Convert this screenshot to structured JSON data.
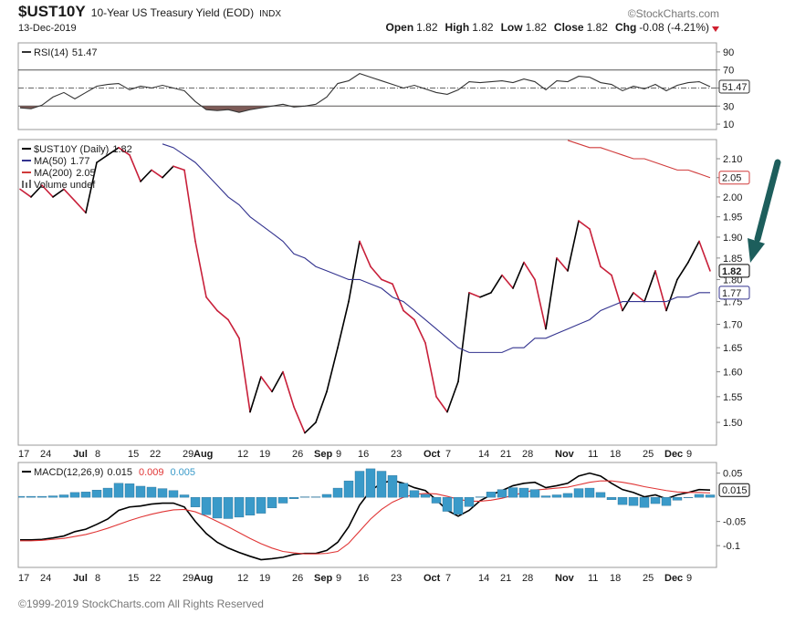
{
  "header": {
    "symbol": "$UST10Y",
    "name": "10-Year US Treasury Yield (EOD)",
    "exchange": "INDX",
    "source": "©StockCharts.com",
    "date": "13-Dec-2019",
    "quote": [
      {
        "label": "Open",
        "value": "1.82"
      },
      {
        "label": "High",
        "value": "1.82"
      },
      {
        "label": "Low",
        "value": "1.82"
      },
      {
        "label": "Close",
        "value": "1.82"
      },
      {
        "label": "Chg",
        "value": "-0.08 (-4.21%)"
      }
    ]
  },
  "chart_data": [
    {
      "type": "line",
      "ylim": [
        4,
        100
      ],
      "yticks": [
        10,
        30,
        50,
        70,
        90
      ],
      "bands": [
        30,
        70
      ],
      "midline": 50,
      "fill_below": 30,
      "fill_color": "#7d5b57",
      "series": [
        {
          "name": "RSI(14)",
          "color": "#333333",
          "tag": true,
          "values": [
            28,
            27,
            31,
            40,
            45,
            38,
            45,
            52,
            54,
            55,
            48,
            52,
            50,
            53,
            50,
            47,
            35,
            26,
            25,
            26,
            23,
            26,
            28,
            30,
            32,
            29,
            30,
            32,
            40,
            55,
            58,
            66,
            62,
            58,
            54,
            50,
            53,
            49,
            45,
            43,
            48,
            57,
            56,
            57,
            58,
            56,
            60,
            57,
            48,
            58,
            57,
            63,
            62,
            56,
            54,
            47,
            52,
            49,
            54,
            47,
            53,
            56,
            57,
            51.47
          ]
        }
      ]
    },
    {
      "type": "line",
      "log_scale": true,
      "ylim": [
        1.457,
        2.152
      ],
      "yticks": [
        {
          "value": 1.5,
          "label": "1.50"
        },
        1.55,
        {
          "value": 1.6,
          "label": "1.60"
        },
        1.65,
        {
          "value": 1.7,
          "label": "1.70"
        },
        1.75,
        {
          "value": 1.8,
          "label": "1.80"
        },
        1.85,
        {
          "value": 1.9,
          "label": "1.90"
        },
        1.95,
        {
          "value": 2,
          "label": "2.00"
        },
        2.05,
        {
          "value": 2.1,
          "label": "2.10"
        }
      ],
      "categories": [
        "17",
        null,
        "24",
        null,
        null,
        "Jul",
        null,
        "8",
        null,
        null,
        "15",
        null,
        "22",
        null,
        null,
        "29",
        "Aug",
        null,
        null,
        null,
        "12",
        null,
        "19",
        null,
        null,
        "26",
        null,
        "Sep",
        null,
        "9",
        null,
        "16",
        null,
        null,
        "23",
        null,
        null,
        "Oct",
        null,
        "7",
        null,
        null,
        "14",
        null,
        "21",
        null,
        "28",
        null,
        null,
        "Nov",
        null,
        null,
        "11",
        null,
        "18",
        null,
        null,
        "25",
        null,
        "Dec",
        null,
        "9",
        null,
        null
      ],
      "legend_extra": "Volume undef",
      "series": [
        {
          "name": "$UST10Y (Daily)",
          "color": "#000000",
          "down_color": "#c8203a",
          "tag": true,
          "tag_bold": true,
          "values": [
            2.02,
            2.0,
            2.03,
            2.0,
            2.02,
            1.99,
            1.96,
            2.09,
            2.11,
            2.13,
            2.11,
            2.04,
            2.07,
            2.05,
            2.08,
            2.07,
            1.89,
            1.76,
            1.73,
            1.71,
            1.67,
            1.52,
            1.59,
            1.56,
            1.6,
            1.53,
            1.48,
            1.5,
            1.56,
            1.65,
            1.75,
            1.89,
            1.83,
            1.8,
            1.79,
            1.73,
            1.71,
            1.66,
            1.55,
            1.52,
            1.58,
            1.77,
            1.76,
            1.77,
            1.81,
            1.78,
            1.84,
            1.8,
            1.69,
            1.85,
            1.82,
            1.94,
            1.92,
            1.83,
            1.81,
            1.73,
            1.77,
            1.75,
            1.82,
            1.73,
            1.8,
            1.84,
            1.89,
            1.82
          ]
        },
        {
          "name": "MA(50)",
          "color": "#33338f",
          "tag": true,
          "values": [
            null,
            null,
            null,
            null,
            null,
            null,
            null,
            null,
            null,
            null,
            null,
            null,
            null,
            2.14,
            2.13,
            2.11,
            2.09,
            2.06,
            2.03,
            2.0,
            1.98,
            1.95,
            1.93,
            1.91,
            1.89,
            1.86,
            1.85,
            1.83,
            1.82,
            1.81,
            1.8,
            1.8,
            1.79,
            1.78,
            1.76,
            1.75,
            1.73,
            1.71,
            1.69,
            1.67,
            1.65,
            1.64,
            1.64,
            1.64,
            1.64,
            1.65,
            1.65,
            1.67,
            1.67,
            1.68,
            1.69,
            1.7,
            1.71,
            1.73,
            1.74,
            1.75,
            1.75,
            1.75,
            1.75,
            1.75,
            1.76,
            1.76,
            1.77,
            1.77
          ]
        },
        {
          "name": "MA(200)",
          "color": "#d03a3a",
          "tag": true,
          "values": [
            null,
            null,
            null,
            null,
            null,
            null,
            null,
            null,
            null,
            null,
            null,
            null,
            null,
            null,
            null,
            null,
            null,
            null,
            null,
            null,
            null,
            null,
            null,
            null,
            null,
            null,
            null,
            null,
            null,
            null,
            null,
            null,
            null,
            null,
            null,
            null,
            null,
            null,
            null,
            null,
            null,
            null,
            null,
            null,
            null,
            null,
            null,
            null,
            null,
            null,
            2.15,
            2.14,
            2.13,
            2.13,
            2.12,
            2.11,
            2.1,
            2.1,
            2.09,
            2.08,
            2.07,
            2.07,
            2.06,
            2.05
          ]
        }
      ]
    },
    {
      "type": "line",
      "ylim": [
        -0.145,
        0.072
      ],
      "yticks": [
        -0.1,
        -0.05,
        0.05
      ],
      "categories": [
        "17",
        null,
        "24",
        null,
        null,
        "Jul",
        null,
        "8",
        null,
        null,
        "15",
        null,
        "22",
        null,
        null,
        "29",
        "Aug",
        null,
        null,
        null,
        "12",
        null,
        "19",
        null,
        null,
        "26",
        null,
        "Sep",
        null,
        "9",
        null,
        "16",
        null,
        null,
        "23",
        null,
        null,
        "Oct",
        null,
        "7",
        null,
        null,
        "14",
        null,
        "21",
        null,
        "28",
        null,
        null,
        "Nov",
        null,
        null,
        "11",
        null,
        "18",
        null,
        null,
        "25",
        null,
        "Dec",
        null,
        "9",
        null,
        null
      ],
      "series": [
        {
          "name": "MACD(12,26,9)",
          "color": "#000000",
          "tag": true,
          "values": [
            -0.088,
            -0.088,
            -0.087,
            -0.084,
            -0.08,
            -0.071,
            -0.066,
            -0.056,
            -0.045,
            -0.027,
            -0.02,
            -0.018,
            -0.014,
            -0.012,
            -0.012,
            -0.02,
            -0.05,
            -0.075,
            -0.093,
            -0.105,
            -0.114,
            -0.122,
            -0.129,
            -0.127,
            -0.124,
            -0.118,
            -0.116,
            -0.116,
            -0.11,
            -0.093,
            -0.061,
            -0.016,
            0.014,
            0.029,
            0.035,
            0.029,
            0.02,
            0.014,
            -0.005,
            -0.027,
            -0.039,
            -0.027,
            -0.007,
            0.005,
            0.014,
            0.024,
            0.029,
            0.031,
            0.02,
            0.024,
            0.029,
            0.044,
            0.05,
            0.044,
            0.029,
            0.016,
            0.01,
            0.001,
            0.005,
            -0.003,
            0.005,
            0.01,
            0.016,
            0.015
          ]
        },
        {
          "color": "#e03535",
          "values": [
            -0.09,
            -0.09,
            -0.089,
            -0.087,
            -0.085,
            -0.081,
            -0.077,
            -0.071,
            -0.064,
            -0.056,
            -0.048,
            -0.041,
            -0.035,
            -0.03,
            -0.026,
            -0.025,
            -0.03,
            -0.039,
            -0.05,
            -0.061,
            -0.073,
            -0.085,
            -0.096,
            -0.105,
            -0.112,
            -0.115,
            -0.117,
            -0.117,
            -0.116,
            -0.112,
            -0.095,
            -0.07,
            -0.045,
            -0.025,
            -0.01,
            0.0,
            0.006,
            0.008,
            0.007,
            0.002,
            -0.004,
            -0.008,
            -0.008,
            -0.006,
            -0.002,
            0.004,
            0.01,
            0.015,
            0.017,
            0.019,
            0.021,
            0.026,
            0.031,
            0.034,
            0.034,
            0.031,
            0.027,
            0.022,
            0.018,
            0.014,
            0.011,
            0.01,
            0.01,
            0.009
          ]
        },
        {
          "kind": "bar",
          "color": "#3a9ac9",
          "values": [
            0.002,
            0.002,
            0.002,
            0.003,
            0.005,
            0.01,
            0.011,
            0.015,
            0.019,
            0.029,
            0.028,
            0.023,
            0.021,
            0.018,
            0.014,
            0.005,
            -0.02,
            -0.036,
            -0.043,
            -0.044,
            -0.041,
            -0.037,
            -0.033,
            -0.022,
            -0.012,
            -0.003,
            0.001,
            0.001,
            0.006,
            0.019,
            0.034,
            0.054,
            0.059,
            0.054,
            0.045,
            0.029,
            0.014,
            0.006,
            -0.012,
            -0.029,
            -0.035,
            -0.019,
            0.001,
            0.011,
            0.016,
            0.02,
            0.019,
            0.016,
            0.003,
            0.005,
            0.008,
            0.018,
            0.019,
            0.01,
            -0.005,
            -0.015,
            -0.017,
            -0.021,
            -0.013,
            -0.017,
            -0.006,
            0.0,
            0.006,
            0.005
          ]
        }
      ]
    }
  ],
  "footer": "©1999-2019 StockCharts.com All Rights Reserved"
}
